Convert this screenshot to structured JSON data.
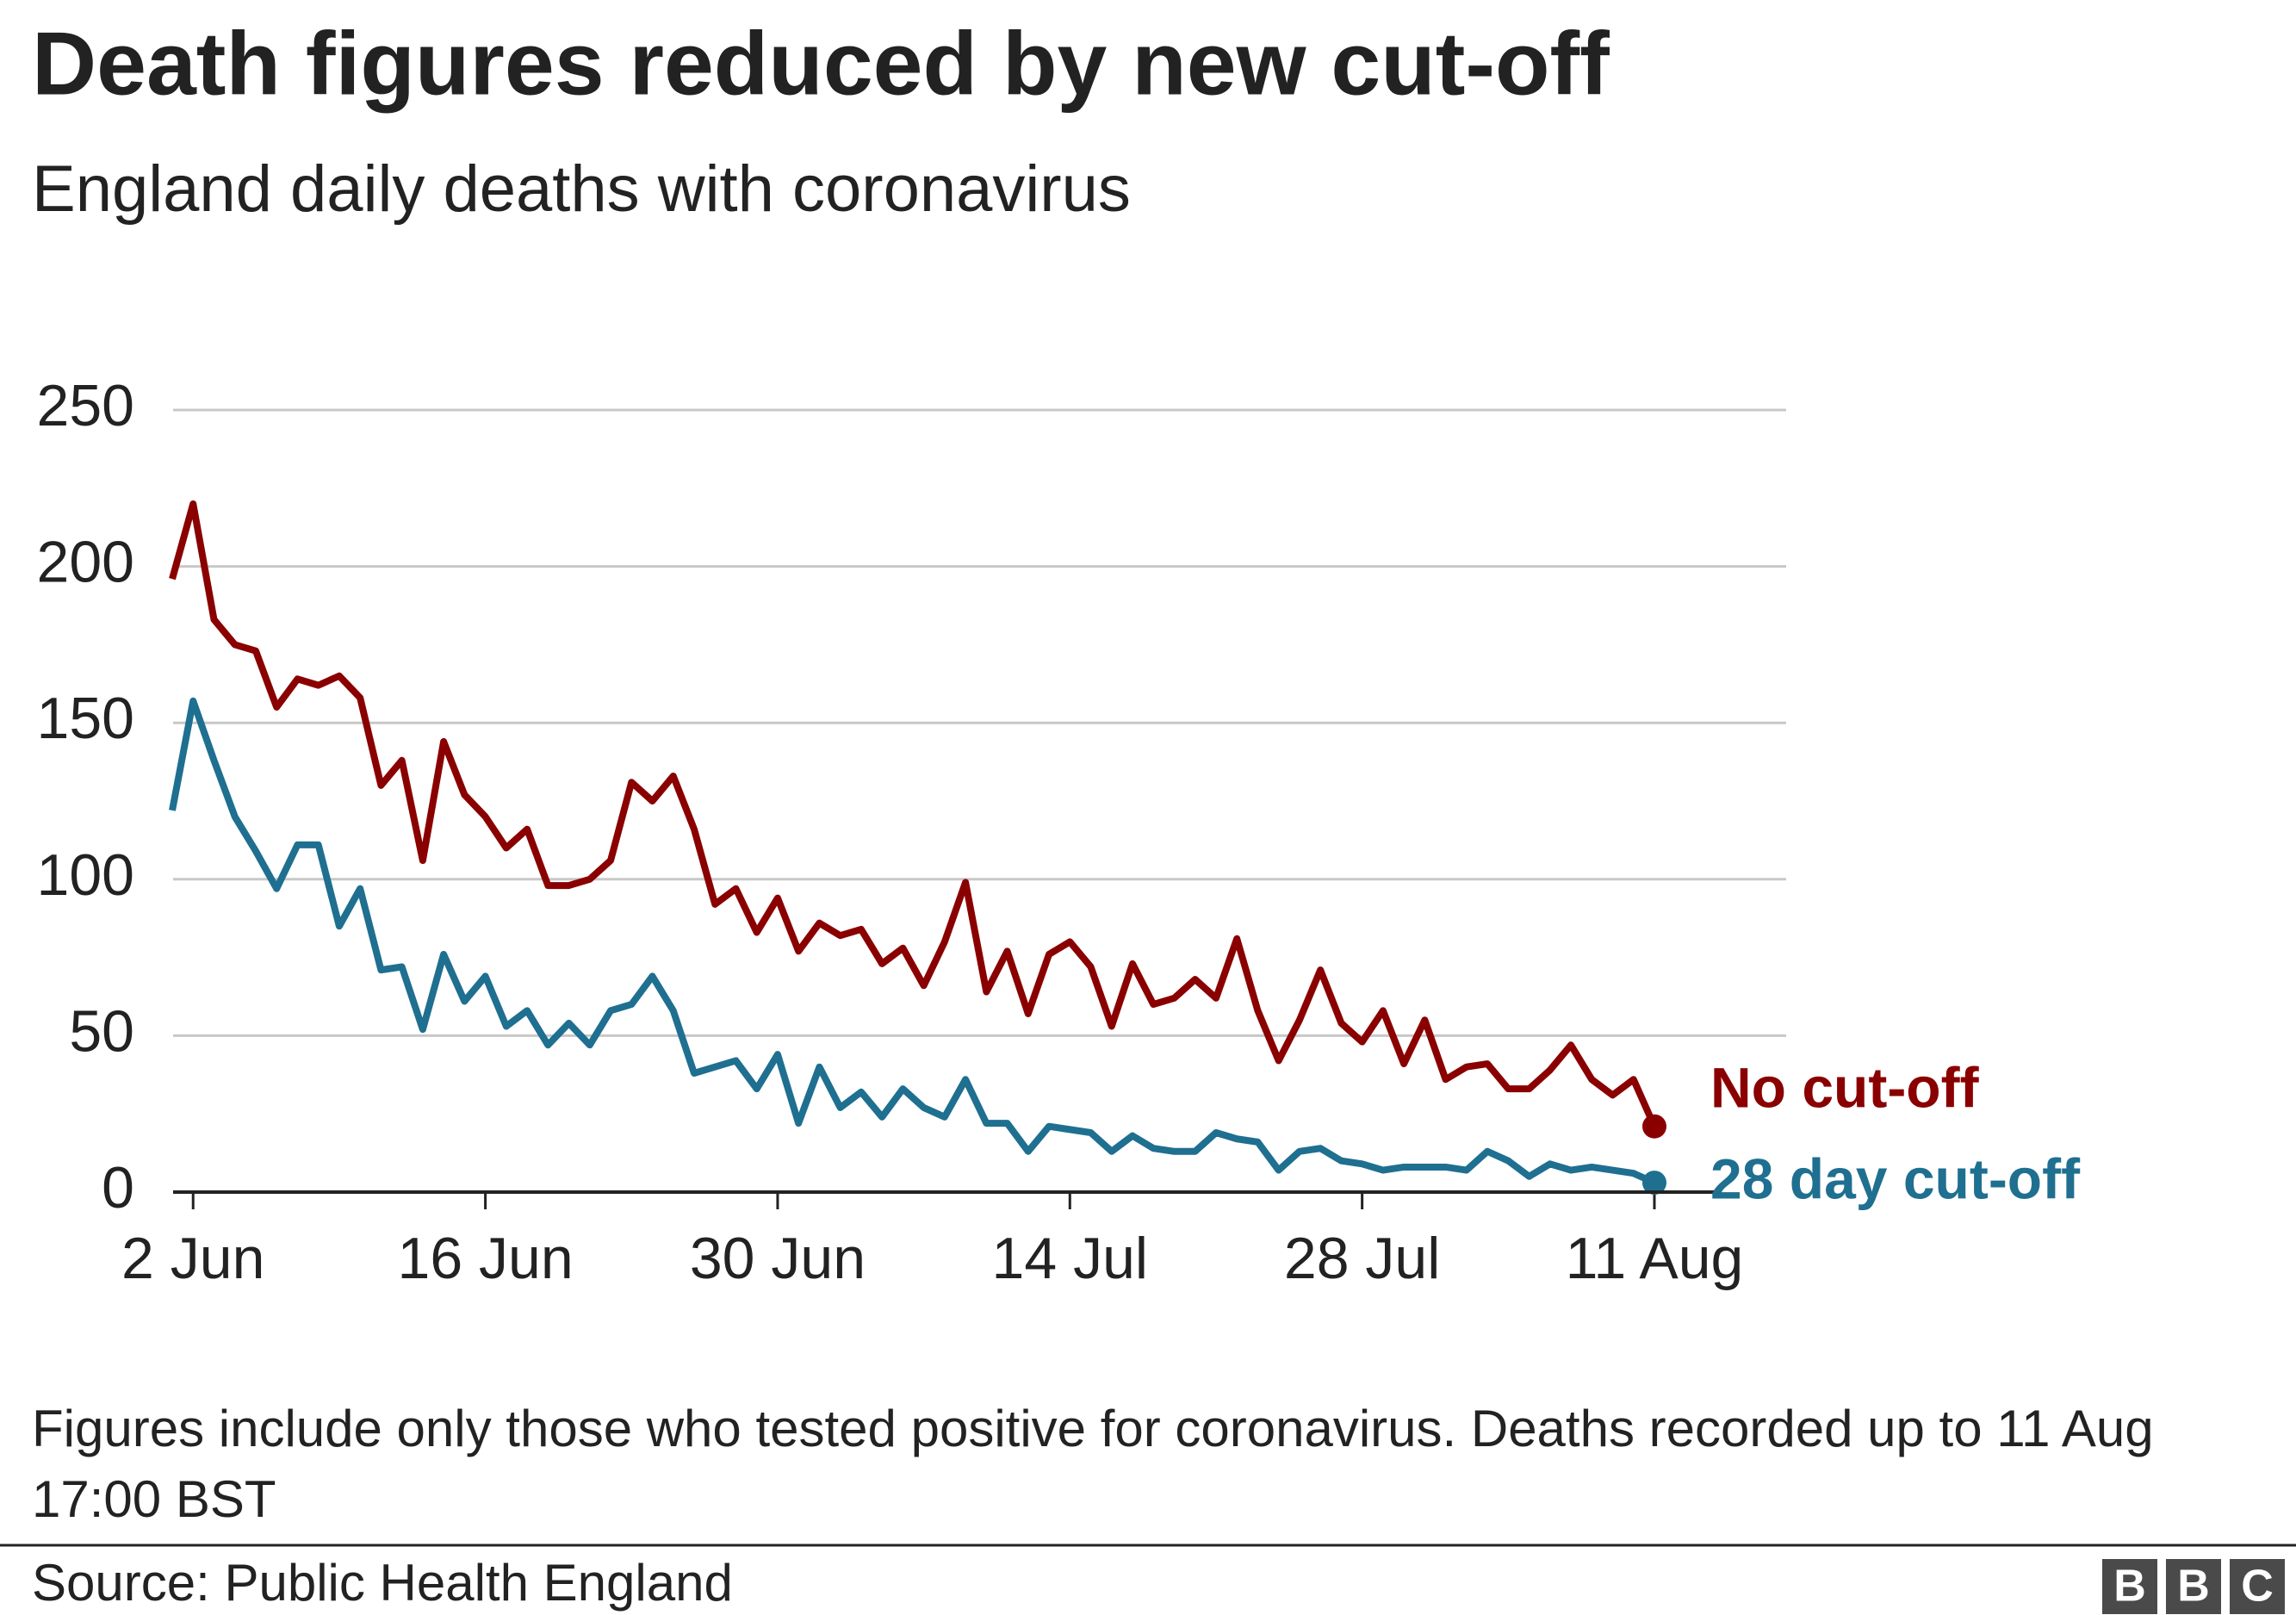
{
  "chart_data": {
    "type": "line",
    "title": "Death figures reduced by new cut-off",
    "subtitle": "England daily deaths with coronavirus",
    "categories": [
      null,
      "2 Jun",
      null,
      null,
      null,
      null,
      null,
      null,
      null,
      null,
      null,
      null,
      null,
      null,
      null,
      "16 Jun",
      null,
      null,
      null,
      null,
      null,
      null,
      null,
      null,
      null,
      null,
      null,
      null,
      null,
      "30 Jun",
      null,
      null,
      null,
      null,
      null,
      null,
      null,
      null,
      null,
      null,
      null,
      null,
      null,
      "14 Jul",
      null,
      null,
      null,
      null,
      null,
      null,
      null,
      null,
      null,
      null,
      null,
      null,
      null,
      "28 Jul",
      null,
      null,
      null,
      null,
      null,
      null,
      null,
      null,
      null,
      null,
      null,
      null,
      null,
      "11 Aug"
    ],
    "series": [
      {
        "name": "No cut-off",
        "color": "#8a0000",
        "values": [
          196,
          220,
          183,
          175,
          173,
          155,
          164,
          162,
          165,
          158,
          130,
          138,
          106,
          144,
          127,
          120,
          110,
          116,
          98,
          98,
          100,
          106,
          131,
          125,
          133,
          116,
          92,
          97,
          83,
          94,
          77,
          86,
          82,
          84,
          73,
          78,
          66,
          80,
          99,
          64,
          77,
          57,
          76,
          80,
          72,
          53,
          73,
          60,
          62,
          68,
          62,
          81,
          58,
          42,
          55,
          71,
          54,
          48,
          58,
          41,
          55,
          36,
          40,
          41,
          33,
          33,
          39,
          47,
          36,
          31,
          36,
          21
        ]
      },
      {
        "name": "28 day cut-off",
        "color": "#1f6f90",
        "values": [
          122,
          157,
          138,
          120,
          109,
          97,
          111,
          111,
          85,
          97,
          71,
          72,
          52,
          76,
          61,
          69,
          53,
          58,
          47,
          54,
          47,
          58,
          60,
          69,
          58,
          38,
          40,
          42,
          33,
          44,
          22,
          40,
          27,
          32,
          24,
          33,
          27,
          24,
          36,
          22,
          22,
          13,
          21,
          20,
          19,
          13,
          18,
          14,
          13,
          13,
          19,
          17,
          16,
          7,
          13,
          14,
          10,
          9,
          7,
          8,
          8,
          8,
          7,
          13,
          10,
          5,
          9,
          7,
          8,
          7,
          6,
          3
        ]
      }
    ],
    "ylim": [
      0,
      250
    ],
    "yticks": [
      0,
      50,
      100,
      150,
      200,
      250
    ],
    "grid": true,
    "note": "Figures include only those who tested positive for coronavirus. Deaths recorded up to 11 Aug 17:00 BST",
    "source": "Source: Public Health England",
    "logo": [
      "B",
      "B",
      "C"
    ]
  }
}
